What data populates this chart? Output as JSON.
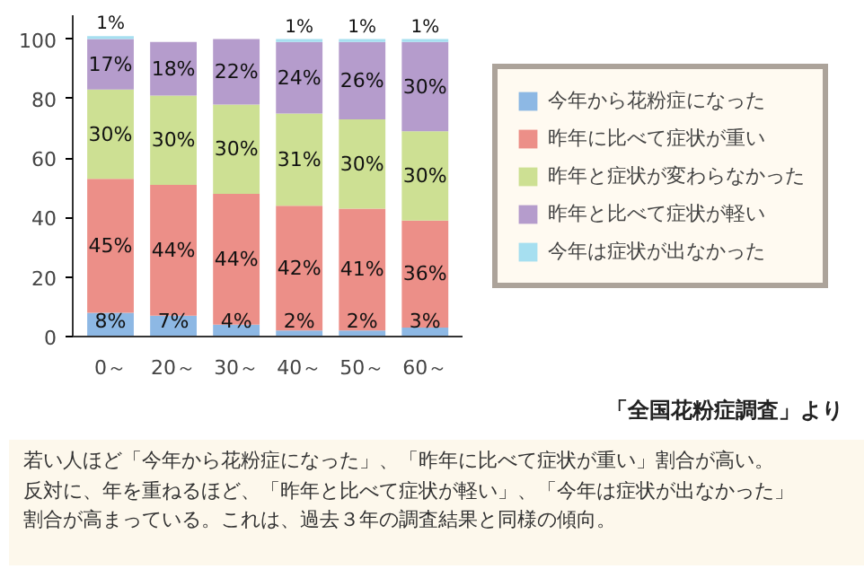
{
  "chart_data": {
    "type": "bar",
    "stacked": true,
    "categories": [
      "0～",
      "20～",
      "30～",
      "40～",
      "50～",
      "60～"
    ],
    "ylim": [
      0,
      108
    ],
    "yticks": [
      0,
      20,
      40,
      60,
      80,
      100
    ],
    "grid": false,
    "legend": "right",
    "series": [
      {
        "name": "今年から花粉症になった",
        "color": "#8db8e4",
        "values": [
          8,
          7,
          4,
          2,
          2,
          3
        ],
        "value_labels": [
          "8%",
          "7%",
          "4%",
          "2%",
          "2%",
          "3%"
        ]
      },
      {
        "name": "昨年に比べて症状が重い",
        "color": "#ec8f88",
        "values": [
          45,
          44,
          44,
          42,
          41,
          36
        ],
        "value_labels": [
          "45%",
          "44%",
          "44%",
          "42%",
          "41%",
          "36%"
        ]
      },
      {
        "name": "昨年と症状が変わらなかった",
        "color": "#cde093",
        "values": [
          30,
          30,
          30,
          31,
          30,
          30
        ],
        "value_labels": [
          "30%",
          "30%",
          "30%",
          "31%",
          "30%",
          "30%"
        ]
      },
      {
        "name": "昨年と比べて症状が軽い",
        "color": "#b59ccc",
        "values": [
          17,
          18,
          22,
          24,
          26,
          30
        ],
        "value_labels": [
          "17%",
          "18%",
          "22%",
          "24%",
          "26%",
          "30%"
        ]
      },
      {
        "name": "今年は症状が出なかった",
        "color": "#a6dff0",
        "values": [
          1,
          0,
          0,
          1,
          1,
          1
        ],
        "value_labels": [
          "1%",
          null,
          null,
          "1%",
          "1%",
          "1%"
        ]
      }
    ],
    "annotations": [
      "「全国花粉症調査」より",
      "若い人ほど「今年から花粉症になった」、「昨年に比べて症状が重い」割合が高い。",
      "反対に、年を重ねるほど、「昨年と比べて症状が軽い」、「今年は症状が出なかった」",
      "割合が高まっている。これは、過去３年の調査結果と同様の傾向。"
    ]
  }
}
